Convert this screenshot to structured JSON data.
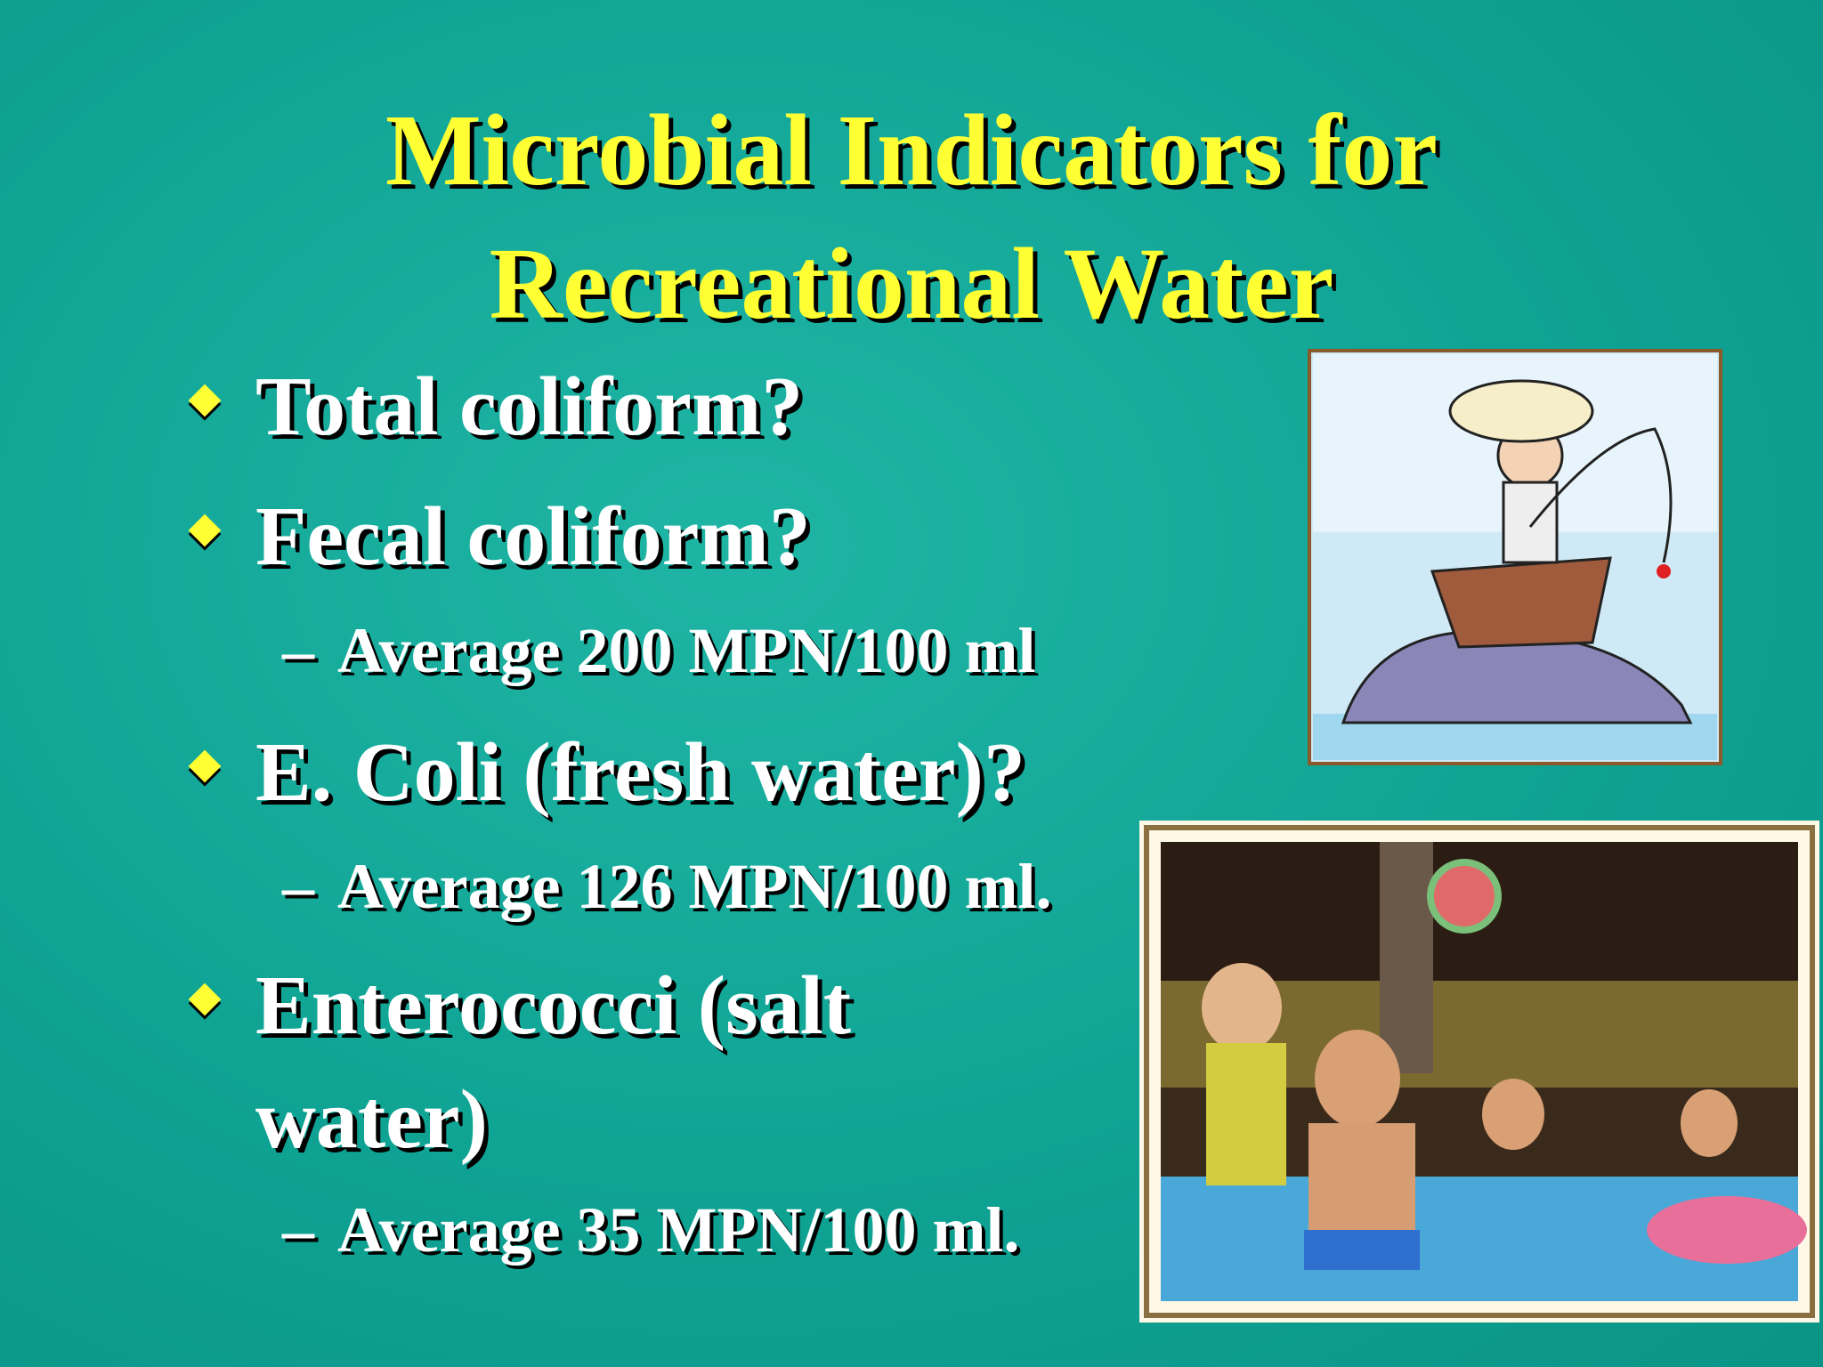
{
  "title": [
    "Microbial Indicators for",
    "Recreational Water"
  ],
  "bullets": [
    {
      "text": "Total coliform?"
    },
    {
      "text": "Fecal coliform?",
      "sub": [
        "Average 200 MPN/100 ml"
      ]
    },
    {
      "text": "E. Coli (fresh water)?",
      "sub": [
        "Average 126 MPN/100 ml."
      ]
    },
    {
      "text": "Enterococci (salt water)",
      "sub": [
        "Average 35 MPN/100 ml."
      ]
    }
  ]
}
